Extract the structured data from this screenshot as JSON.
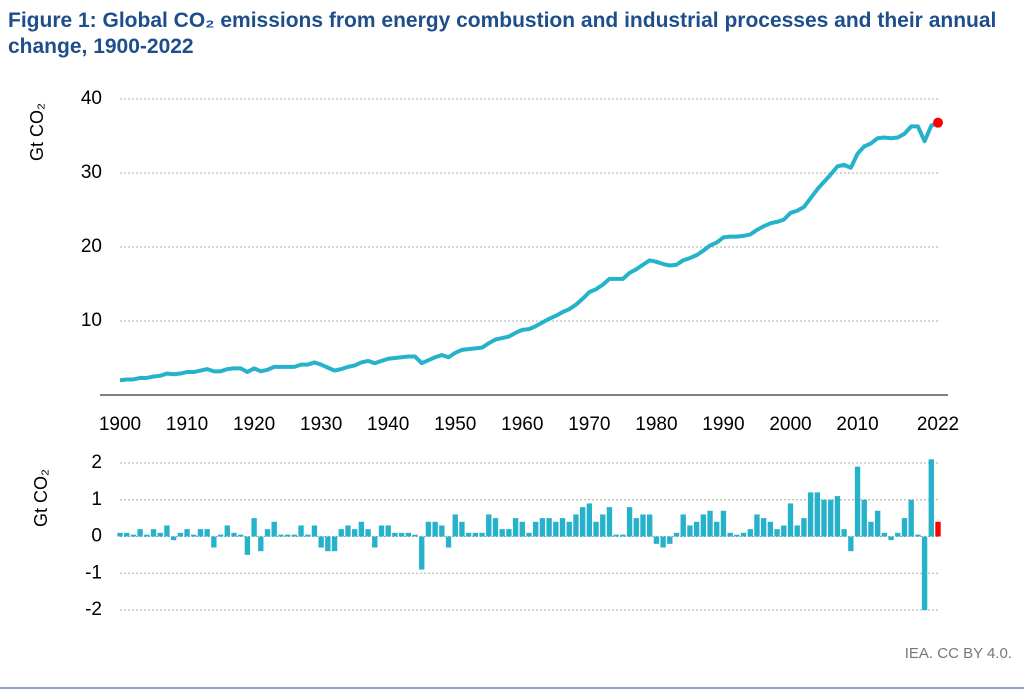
{
  "chart_data": [
    {
      "type": "line",
      "title": "Figure 1: Global CO₂ emissions from energy combustion and industrial processes and their annual change, 1900-2022",
      "y_label": "Gt CO₂",
      "x": [
        1900,
        1901,
        1902,
        1903,
        1904,
        1905,
        1906,
        1907,
        1908,
        1909,
        1910,
        1911,
        1912,
        1913,
        1914,
        1915,
        1916,
        1917,
        1918,
        1919,
        1920,
        1921,
        1922,
        1923,
        1924,
        1925,
        1926,
        1927,
        1928,
        1929,
        1930,
        1931,
        1932,
        1933,
        1934,
        1935,
        1936,
        1937,
        1938,
        1939,
        1940,
        1941,
        1942,
        1943,
        1944,
        1945,
        1946,
        1947,
        1948,
        1949,
        1950,
        1951,
        1952,
        1953,
        1954,
        1955,
        1956,
        1957,
        1958,
        1959,
        1960,
        1961,
        1962,
        1963,
        1964,
        1965,
        1966,
        1967,
        1968,
        1969,
        1970,
        1971,
        1972,
        1973,
        1974,
        1975,
        1976,
        1977,
        1978,
        1979,
        1980,
        1981,
        1982,
        1983,
        1984,
        1985,
        1986,
        1987,
        1988,
        1989,
        1990,
        1991,
        1992,
        1993,
        1994,
        1995,
        1996,
        1997,
        1998,
        1999,
        2000,
        2001,
        2002,
        2003,
        2004,
        2005,
        2006,
        2007,
        2008,
        2009,
        2010,
        2011,
        2012,
        2013,
        2014,
        2015,
        2016,
        2017,
        2018,
        2019,
        2020,
        2021,
        2022
      ],
      "values": [
        2.0,
        2.1,
        2.1,
        2.3,
        2.3,
        2.5,
        2.6,
        2.9,
        2.8,
        2.9,
        3.1,
        3.1,
        3.3,
        3.5,
        3.2,
        3.2,
        3.5,
        3.6,
        3.6,
        3.1,
        3.6,
        3.2,
        3.4,
        3.8,
        3.8,
        3.8,
        3.8,
        4.1,
        4.1,
        4.4,
        4.1,
        3.7,
        3.3,
        3.5,
        3.8,
        4.0,
        4.4,
        4.6,
        4.3,
        4.6,
        4.9,
        5.0,
        5.1,
        5.2,
        5.2,
        4.3,
        4.7,
        5.1,
        5.4,
        5.1,
        5.7,
        6.1,
        6.2,
        6.3,
        6.4,
        7.0,
        7.5,
        7.7,
        7.9,
        8.4,
        8.8,
        8.9,
        9.3,
        9.8,
        10.3,
        10.7,
        11.2,
        11.6,
        12.2,
        13.0,
        13.9,
        14.3,
        14.9,
        15.7,
        15.7,
        15.7,
        16.5,
        17.0,
        17.6,
        18.2,
        18.0,
        17.7,
        17.5,
        17.6,
        18.2,
        18.5,
        18.9,
        19.5,
        20.2,
        20.6,
        21.3,
        21.4,
        21.4,
        21.5,
        21.7,
        22.3,
        22.8,
        23.2,
        23.4,
        23.7,
        24.6,
        24.9,
        25.4,
        26.6,
        27.8,
        28.8,
        29.8,
        30.9,
        31.1,
        30.7,
        32.6,
        33.6,
        34.0,
        34.7,
        34.8,
        34.7,
        34.8,
        35.3,
        36.3,
        36.3,
        34.3,
        36.4,
        36.8
      ],
      "color": "#26b2cb",
      "highlight_color": "#ff0000",
      "xlim": [
        1900,
        2022
      ],
      "xticks": [
        1900,
        1910,
        1920,
        1930,
        1940,
        1950,
        1960,
        1970,
        1980,
        1990,
        2000,
        2010,
        2022
      ],
      "ylim": [
        0,
        40
      ],
      "yticks": [
        10,
        20,
        30,
        40
      ],
      "grid": true
    },
    {
      "type": "bar",
      "y_label": "Gt CO₂",
      "x": [
        1900,
        1901,
        1902,
        1903,
        1904,
        1905,
        1906,
        1907,
        1908,
        1909,
        1910,
        1911,
        1912,
        1913,
        1914,
        1915,
        1916,
        1917,
        1918,
        1919,
        1920,
        1921,
        1922,
        1923,
        1924,
        1925,
        1926,
        1927,
        1928,
        1929,
        1930,
        1931,
        1932,
        1933,
        1934,
        1935,
        1936,
        1937,
        1938,
        1939,
        1940,
        1941,
        1942,
        1943,
        1944,
        1945,
        1946,
        1947,
        1948,
        1949,
        1950,
        1951,
        1952,
        1953,
        1954,
        1955,
        1956,
        1957,
        1958,
        1959,
        1960,
        1961,
        1962,
        1963,
        1964,
        1965,
        1966,
        1967,
        1968,
        1969,
        1970,
        1971,
        1972,
        1973,
        1974,
        1975,
        1976,
        1977,
        1978,
        1979,
        1980,
        1981,
        1982,
        1983,
        1984,
        1985,
        1986,
        1987,
        1988,
        1989,
        1990,
        1991,
        1992,
        1993,
        1994,
        1995,
        1996,
        1997,
        1998,
        1999,
        2000,
        2001,
        2002,
        2003,
        2004,
        2005,
        2006,
        2007,
        2008,
        2009,
        2010,
        2011,
        2012,
        2013,
        2014,
        2015,
        2016,
        2017,
        2018,
        2019,
        2020,
        2021,
        2022
      ],
      "values": [
        0.1,
        0.1,
        0.05,
        0.2,
        0.05,
        0.2,
        0.1,
        0.3,
        -0.1,
        0.1,
        0.2,
        0.05,
        0.2,
        0.2,
        -0.3,
        0.05,
        0.3,
        0.1,
        0.05,
        -0.5,
        0.5,
        -0.4,
        0.2,
        0.4,
        0.05,
        0.05,
        0.05,
        0.3,
        0.05,
        0.3,
        -0.3,
        -0.4,
        -0.4,
        0.2,
        0.3,
        0.2,
        0.4,
        0.2,
        -0.3,
        0.3,
        0.3,
        0.1,
        0.1,
        0.1,
        0.05,
        -0.9,
        0.4,
        0.4,
        0.3,
        -0.3,
        0.6,
        0.4,
        0.1,
        0.1,
        0.1,
        0.6,
        0.5,
        0.2,
        0.2,
        0.5,
        0.4,
        0.1,
        0.4,
        0.5,
        0.5,
        0.4,
        0.5,
        0.4,
        0.6,
        0.8,
        0.9,
        0.4,
        0.6,
        0.8,
        0.05,
        0.05,
        0.8,
        0.5,
        0.6,
        0.6,
        -0.2,
        -0.3,
        -0.2,
        0.1,
        0.6,
        0.3,
        0.4,
        0.6,
        0.7,
        0.4,
        0.7,
        0.1,
        0.05,
        0.1,
        0.2,
        0.6,
        0.5,
        0.4,
        0.2,
        0.3,
        0.9,
        0.3,
        0.5,
        1.2,
        1.2,
        1.0,
        1.0,
        1.1,
        0.2,
        -0.4,
        1.9,
        1.0,
        0.4,
        0.7,
        0.1,
        -0.1,
        0.1,
        0.5,
        1.0,
        0.05,
        -2.0,
        2.1,
        0.4
      ],
      "color": "#26b2cb",
      "highlight_color": "#ff0000",
      "xlim": [
        1900,
        2022
      ],
      "ylim": [
        -2,
        2
      ],
      "yticks": [
        -2,
        -1,
        0,
        1,
        2
      ],
      "grid": true
    }
  ],
  "source": "IEA. CC BY 4.0."
}
